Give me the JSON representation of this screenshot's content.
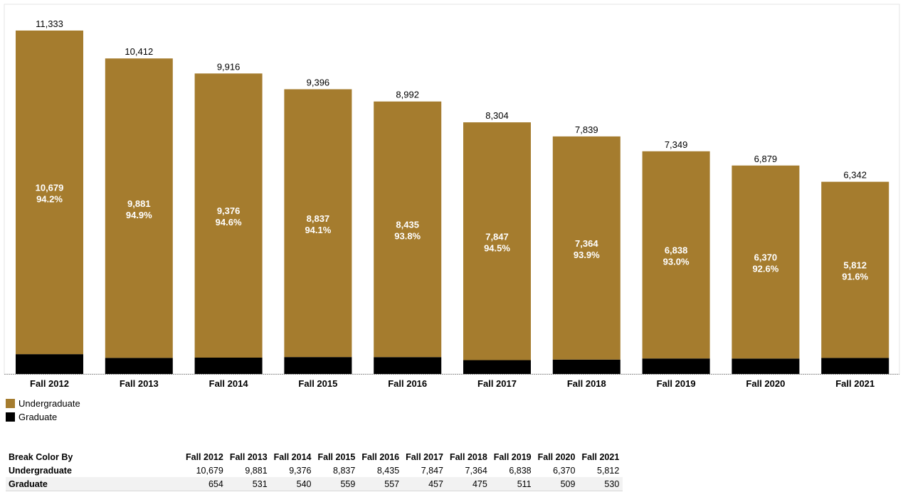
{
  "colors": {
    "undergraduate": "#a57c2e",
    "graduate": "#000000"
  },
  "chart_data": {
    "type": "bar",
    "stacked": true,
    "categories": [
      "Fall 2012",
      "Fall 2013",
      "Fall 2014",
      "Fall 2015",
      "Fall 2016",
      "Fall 2017",
      "Fall 2018",
      "Fall 2019",
      "Fall 2020",
      "Fall 2021"
    ],
    "series": [
      {
        "name": "Graduate",
        "values": [
          654,
          531,
          540,
          559,
          557,
          457,
          475,
          511,
          509,
          530
        ]
      },
      {
        "name": "Undergraduate",
        "values": [
          10679,
          9881,
          9376,
          8837,
          8435,
          7847,
          7364,
          6838,
          6370,
          5812
        ]
      }
    ],
    "totals": [
      "11,333",
      "10,412",
      "9,916",
      "9,396",
      "8,992",
      "8,304",
      "7,839",
      "7,349",
      "6,879",
      "6,342"
    ],
    "undergrad_labels": [
      "10,679",
      "9,881",
      "9,376",
      "8,837",
      "8,435",
      "7,847",
      "7,364",
      "6,838",
      "6,370",
      "5,812"
    ],
    "undergrad_percents": [
      "94.2%",
      "94.9%",
      "94.6%",
      "94.1%",
      "93.8%",
      "94.5%",
      "93.9%",
      "93.0%",
      "92.6%",
      "91.6%"
    ],
    "ylim": [
      0,
      12200
    ],
    "grid": false,
    "legend_position": "bottom-left"
  },
  "legend": [
    {
      "label": "Undergraduate",
      "color": "#a57c2e"
    },
    {
      "label": "Graduate",
      "color": "#000000"
    }
  ],
  "table": {
    "header_label": "Break Color By",
    "columns": [
      "Fall 2012",
      "Fall 2013",
      "Fall 2014",
      "Fall 2015",
      "Fall 2016",
      "Fall 2017",
      "Fall 2018",
      "Fall 2019",
      "Fall 2020",
      "Fall 2021"
    ],
    "rows": [
      {
        "label": "Undergraduate",
        "values": [
          "10,679",
          "9,881",
          "9,376",
          "8,837",
          "8,435",
          "7,847",
          "7,364",
          "6,838",
          "6,370",
          "5,812"
        ]
      },
      {
        "label": "Graduate",
        "values": [
          "654",
          "531",
          "540",
          "559",
          "557",
          "457",
          "475",
          "511",
          "509",
          "530"
        ]
      }
    ]
  }
}
